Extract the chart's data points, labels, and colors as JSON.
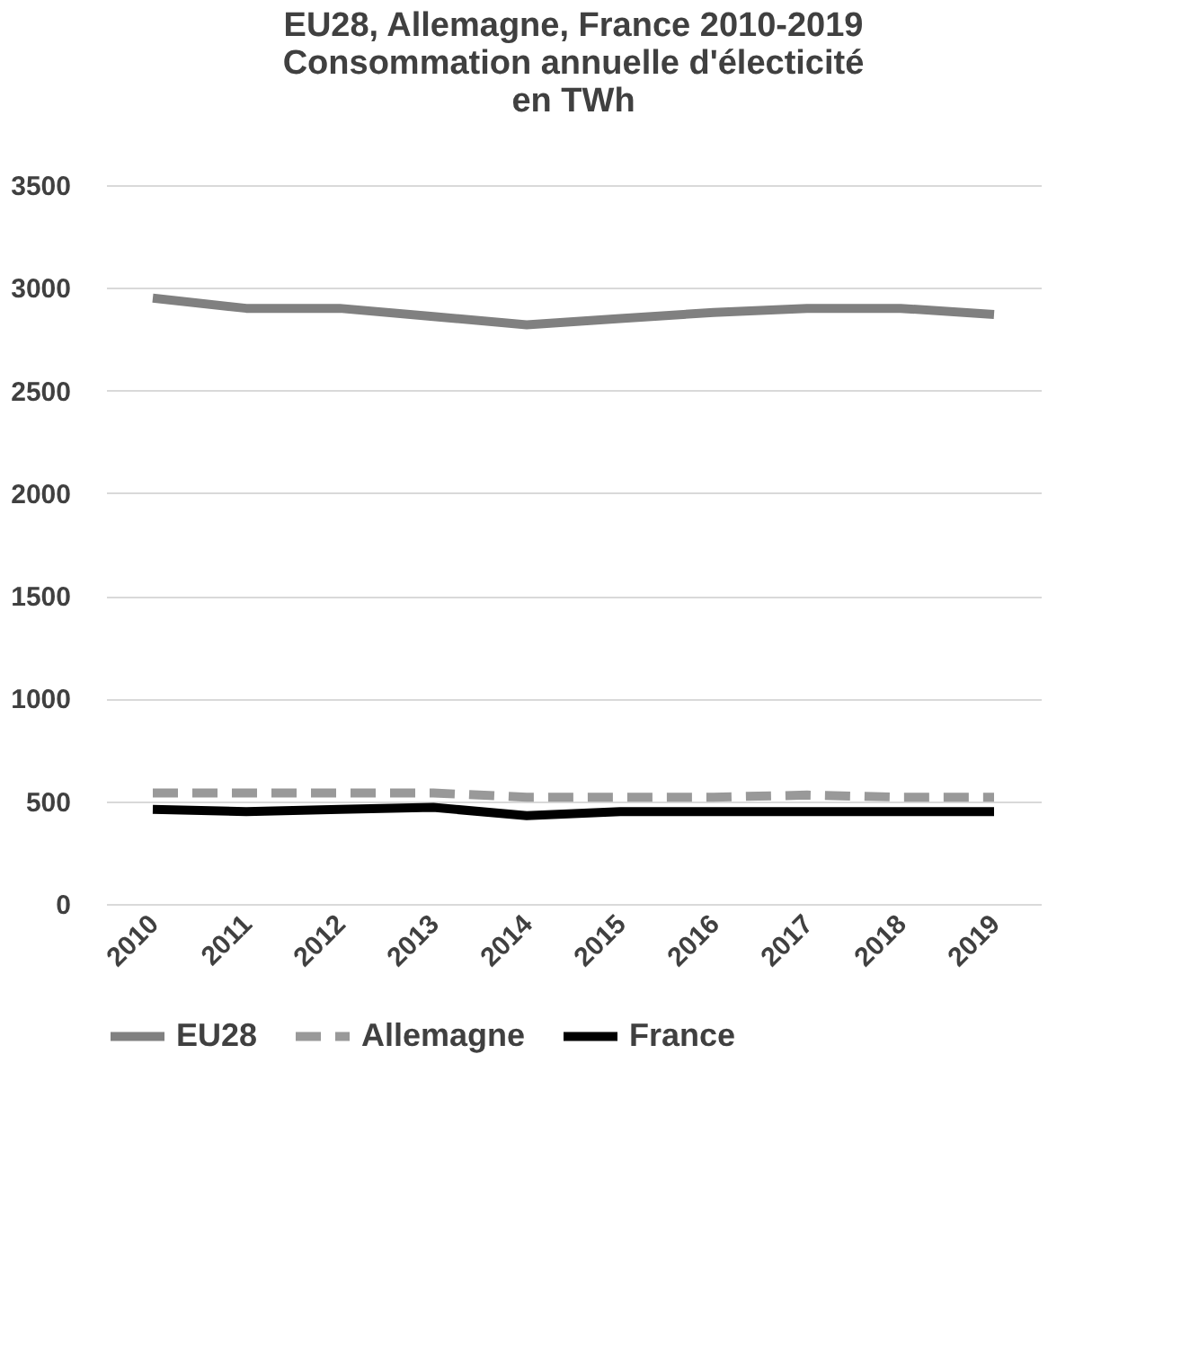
{
  "chart_data": {
    "type": "line",
    "title": [
      "EU28, Allemagne, France 2010-2019",
      "Consommation annuelle d'électicité",
      "en TWh"
    ],
    "categories": [
      "2010",
      "2011",
      "2012",
      "2013",
      "2014",
      "2015",
      "2016",
      "2017",
      "2018",
      "2019"
    ],
    "series": [
      {
        "name": "EU28",
        "color": "#808080",
        "line_style": "solid",
        "values": [
          2950,
          2900,
          2900,
          2860,
          2820,
          2850,
          2880,
          2900,
          2900,
          2870
        ]
      },
      {
        "name": "Allemagne",
        "color": "#999999",
        "line_style": "dashed",
        "values": [
          540,
          540,
          540,
          540,
          520,
          520,
          520,
          530,
          520,
          520
        ]
      },
      {
        "name": "France",
        "color": "#000000",
        "line_style": "solid",
        "values": [
          460,
          450,
          460,
          470,
          430,
          450,
          450,
          450,
          450,
          450
        ]
      }
    ],
    "ylim": [
      0,
      3500
    ],
    "yticks": [
      0,
      500,
      1000,
      1500,
      2000,
      2500,
      3000,
      3500
    ],
    "grid": "y",
    "legend": "bottom",
    "marker": "none"
  }
}
